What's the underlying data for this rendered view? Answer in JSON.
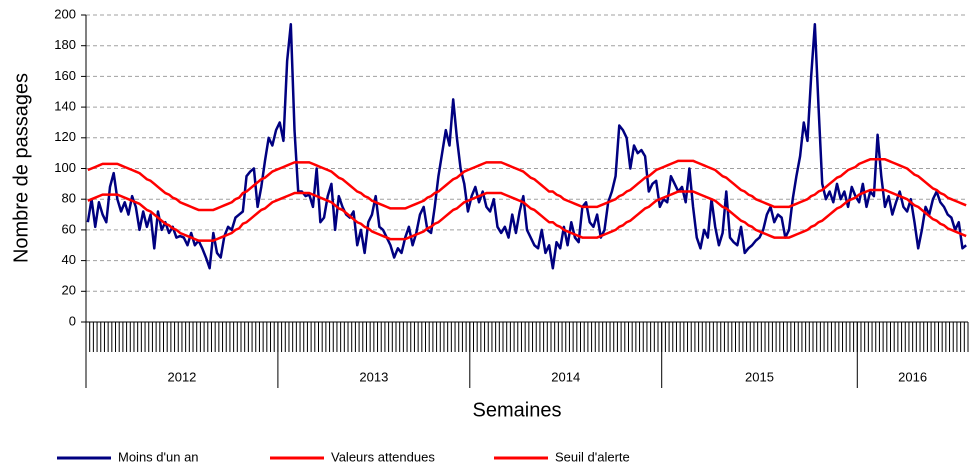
{
  "chart_data": {
    "type": "line",
    "y_label": "Nombre  de passages",
    "x_label": "Semaines",
    "ylim": [
      0,
      200
    ],
    "yticks": [
      0,
      20,
      40,
      60,
      80,
      100,
      120,
      140,
      160,
      180,
      200
    ],
    "grid": true,
    "legend": "bottom",
    "x_groups": [
      {
        "label": "2012",
        "size": 52
      },
      {
        "label": "2013",
        "size": 52
      },
      {
        "label": "2014",
        "size": 52
      },
      {
        "label": "2015",
        "size": 53
      },
      {
        "label": "2016",
        "size": 30
      }
    ],
    "categories": [
      null,
      null,
      null,
      null,
      null,
      null,
      null,
      null,
      null,
      null,
      null,
      null,
      null,
      null,
      null,
      null,
      null,
      null,
      null,
      null,
      null,
      null,
      null,
      null,
      null,
      null,
      null,
      null,
      null,
      null,
      null,
      null,
      null,
      null,
      null,
      null,
      null,
      null,
      null,
      null,
      null,
      null,
      null,
      null,
      null,
      null,
      null,
      null,
      null,
      null,
      null,
      null,
      null,
      null,
      null,
      null,
      null,
      null,
      null,
      null,
      null,
      null,
      null,
      null,
      null,
      null,
      null,
      null,
      null,
      null,
      null,
      null,
      null,
      null,
      null,
      null,
      null,
      null,
      null,
      null,
      null,
      null,
      null,
      null,
      null,
      null,
      null,
      null,
      null,
      null,
      null,
      null,
      null,
      null,
      null,
      null,
      null,
      null,
      null,
      null,
      null,
      null,
      null,
      null,
      null,
      null,
      null,
      null,
      null,
      null,
      null,
      null,
      null,
      null,
      null,
      null,
      null,
      null,
      null,
      null,
      null,
      null,
      null,
      null,
      null,
      null,
      null,
      null,
      null,
      null,
      null,
      null,
      null,
      null,
      null,
      null,
      null,
      null,
      null,
      null,
      null,
      null,
      null,
      null,
      null,
      null,
      null,
      null,
      null,
      null,
      null,
      null,
      null,
      null,
      null,
      null,
      null,
      null,
      null,
      null,
      null,
      null,
      null,
      null,
      null,
      null,
      null,
      null,
      null,
      null,
      null,
      null,
      null,
      null,
      null,
      null,
      null,
      null,
      null,
      null,
      null,
      null,
      null,
      null,
      null,
      null,
      null,
      null,
      null,
      null,
      null,
      null,
      null,
      null,
      null,
      null,
      null,
      null,
      null,
      null,
      null,
      null,
      null,
      null,
      null,
      null,
      null,
      null,
      null,
      null,
      null,
      null,
      null,
      null,
      null,
      null,
      null,
      null,
      null,
      null,
      null,
      null,
      null,
      null,
      null,
      null,
      null,
      null,
      null,
      null,
      null,
      null,
      null,
      null,
      null,
      null,
      null,
      null,
      null
    ],
    "series": [
      {
        "name": "Moins d'un an",
        "color": "#000080",
        "width": 2.5,
        "values": [
          65,
          80,
          62,
          78,
          70,
          65,
          88,
          97,
          80,
          72,
          78,
          70,
          82,
          75,
          60,
          72,
          62,
          70,
          48,
          72,
          60,
          65,
          58,
          62,
          55,
          56,
          55,
          50,
          58,
          50,
          53,
          48,
          42,
          35,
          58,
          45,
          42,
          56,
          62,
          60,
          68,
          70,
          72,
          95,
          98,
          100,
          75,
          88,
          105,
          120,
          115,
          125,
          130,
          118,
          170,
          194,
          125,
          85,
          85,
          82,
          83,
          75,
          100,
          65,
          68,
          82,
          90,
          60,
          82,
          75,
          70,
          68,
          72,
          50,
          60,
          45,
          65,
          70,
          82,
          62,
          60,
          55,
          50,
          42,
          48,
          45,
          55,
          62,
          50,
          58,
          70,
          75,
          60,
          58,
          75,
          95,
          110,
          125,
          115,
          145,
          120,
          100,
          90,
          72,
          82,
          88,
          78,
          85,
          75,
          72,
          80,
          62,
          58,
          62,
          55,
          70,
          58,
          72,
          82,
          60,
          55,
          50,
          48,
          60,
          45,
          50,
          35,
          52,
          48,
          62,
          50,
          65,
          55,
          52,
          75,
          78,
          65,
          62,
          70,
          55,
          60,
          78,
          85,
          95,
          128,
          125,
          120,
          100,
          115,
          110,
          112,
          108,
          85,
          90,
          92,
          75,
          80,
          78,
          95,
          90,
          85,
          88,
          78,
          100,
          75,
          55,
          48,
          60,
          55,
          80,
          62,
          50,
          58,
          85,
          55,
          52,
          50,
          62,
          45,
          48,
          50,
          53,
          55,
          60,
          70,
          75,
          65,
          70,
          68,
          55,
          60,
          80,
          95,
          108,
          130,
          118,
          160,
          194,
          140,
          90,
          80,
          85,
          78,
          90,
          80,
          85,
          75,
          88,
          82,
          78,
          90,
          75,
          85,
          82,
          122,
          95,
          75,
          82,
          70,
          78,
          85,
          75,
          72,
          80,
          65,
          48,
          60,
          75,
          70,
          80,
          85,
          78,
          75,
          70,
          68,
          60,
          65,
          48,
          50
        ]
      },
      {
        "name": "Valeurs attendues",
        "color": "#ff0000",
        "width": 2.5,
        "values": [
          79,
          80,
          81,
          82,
          83,
          83,
          83,
          83,
          83,
          82,
          81,
          80,
          79,
          78,
          77,
          75,
          73,
          72,
          70,
          68,
          66,
          64,
          63,
          61,
          60,
          58,
          57,
          56,
          55,
          54,
          53,
          53,
          53,
          53,
          53,
          54,
          55,
          56,
          57,
          58,
          60,
          61,
          64,
          65,
          67,
          69,
          71,
          73,
          74,
          76,
          78,
          79,
          80,
          81,
          82,
          83,
          84,
          84,
          84,
          84,
          84,
          83,
          82,
          81,
          80,
          79,
          78,
          76,
          74,
          73,
          71,
          69,
          67,
          65,
          64,
          62,
          61,
          59,
          58,
          57,
          56,
          55,
          54,
          54,
          54,
          54,
          54,
          55,
          56,
          57,
          58,
          59,
          61,
          62,
          64,
          65,
          67,
          69,
          71,
          73,
          74,
          76,
          78,
          79,
          80,
          81,
          82,
          83,
          84,
          84,
          84,
          84,
          84,
          83,
          82,
          81,
          80,
          79,
          78,
          76,
          74,
          73,
          71,
          69,
          67,
          65,
          65,
          63,
          62,
          60,
          59,
          58,
          57,
          56,
          55,
          55,
          55,
          55,
          55,
          56,
          57,
          58,
          59,
          60,
          62,
          63,
          65,
          66,
          68,
          70,
          72,
          74,
          75,
          77,
          79,
          80,
          81,
          82,
          83,
          84,
          85,
          85,
          85,
          85,
          85,
          84,
          83,
          82,
          81,
          80,
          79,
          77,
          75,
          74,
          72,
          70,
          68,
          66,
          65,
          63,
          62,
          60,
          59,
          58,
          57,
          56,
          55,
          55,
          55,
          55,
          55,
          56,
          57,
          58,
          59,
          60,
          62,
          63,
          65,
          66,
          68,
          70,
          72,
          74,
          75,
          77,
          79,
          80,
          81,
          83,
          84,
          85,
          86,
          86,
          86,
          86,
          86,
          85,
          84,
          83,
          82,
          81,
          80,
          78,
          76,
          75,
          73,
          71,
          69,
          67,
          66,
          64,
          63,
          61,
          60,
          59,
          58,
          57,
          56
        ]
      },
      {
        "name": "Seuil d'alerte",
        "color": "#ff0000",
        "width": 2.5,
        "values": [
          99,
          100,
          101,
          102,
          103,
          103,
          103,
          103,
          103,
          102,
          101,
          100,
          99,
          98,
          97,
          95,
          93,
          92,
          90,
          88,
          86,
          84,
          83,
          81,
          80,
          78,
          77,
          76,
          75,
          74,
          73,
          73,
          73,
          73,
          73,
          74,
          75,
          76,
          77,
          78,
          80,
          81,
          84,
          85,
          87,
          89,
          91,
          93,
          94,
          96,
          98,
          99,
          100,
          101,
          102,
          103,
          104,
          104,
          104,
          104,
          104,
          103,
          102,
          101,
          100,
          99,
          98,
          96,
          94,
          93,
          91,
          89,
          87,
          85,
          84,
          82,
          81,
          79,
          78,
          77,
          76,
          75,
          74,
          74,
          74,
          74,
          74,
          75,
          76,
          77,
          78,
          79,
          81,
          82,
          84,
          85,
          87,
          89,
          91,
          93,
          94,
          96,
          98,
          99,
          100,
          101,
          102,
          103,
          104,
          104,
          104,
          104,
          104,
          103,
          102,
          101,
          100,
          99,
          98,
          96,
          94,
          93,
          91,
          89,
          87,
          85,
          85,
          83,
          82,
          80,
          79,
          78,
          77,
          76,
          75,
          75,
          75,
          75,
          75,
          76,
          77,
          78,
          79,
          80,
          82,
          83,
          85,
          86,
          88,
          90,
          92,
          94,
          95,
          97,
          99,
          100,
          101,
          102,
          103,
          104,
          105,
          105,
          105,
          105,
          105,
          104,
          103,
          102,
          101,
          100,
          99,
          97,
          95,
          94,
          92,
          90,
          88,
          86,
          85,
          83,
          82,
          80,
          79,
          78,
          77,
          76,
          75,
          75,
          75,
          75,
          75,
          76,
          77,
          78,
          79,
          80,
          82,
          83,
          85,
          86,
          88,
          90,
          92,
          94,
          95,
          97,
          99,
          100,
          101,
          103,
          104,
          105,
          106,
          106,
          106,
          106,
          106,
          105,
          104,
          103,
          102,
          101,
          100,
          98,
          96,
          95,
          93,
          91,
          89,
          87,
          86,
          84,
          83,
          81,
          80,
          79,
          78,
          77,
          76
        ]
      }
    ]
  }
}
